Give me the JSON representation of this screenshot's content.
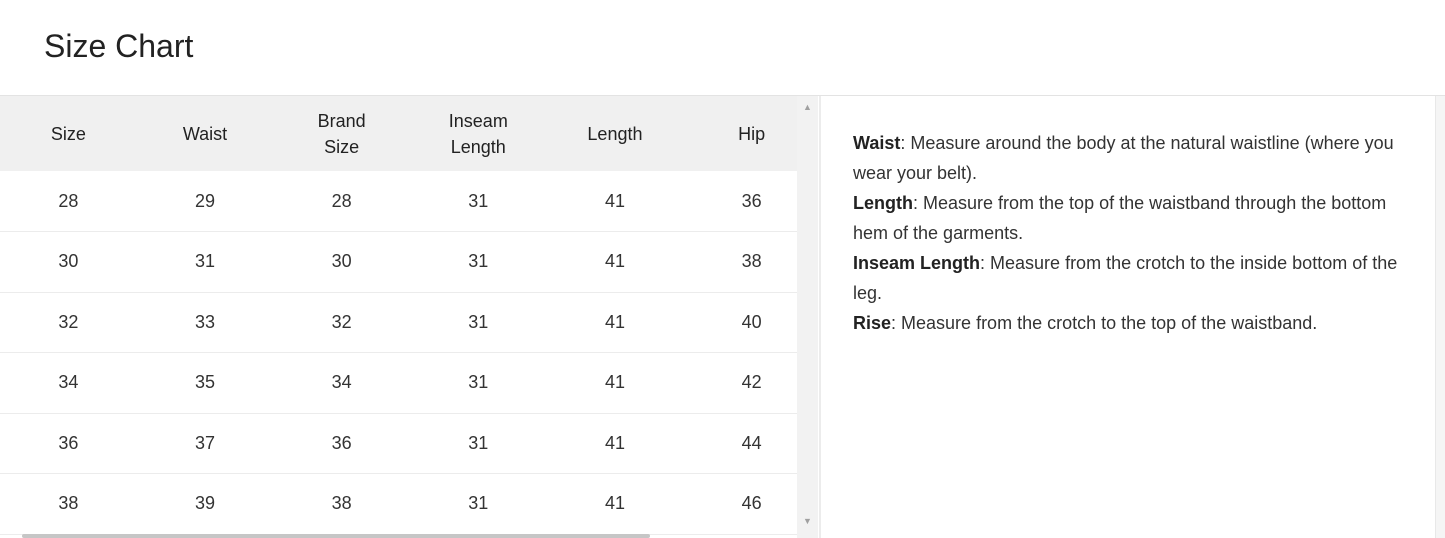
{
  "title": "Size Chart",
  "table": {
    "headers": [
      "Size",
      "Waist",
      "Brand Size",
      "Inseam Length",
      "Length",
      "Hip"
    ],
    "rows": [
      [
        "28",
        "29",
        "28",
        "31",
        "41",
        "36"
      ],
      [
        "30",
        "31",
        "30",
        "31",
        "41",
        "38"
      ],
      [
        "32",
        "33",
        "32",
        "31",
        "41",
        "40"
      ],
      [
        "34",
        "35",
        "34",
        "31",
        "41",
        "42"
      ],
      [
        "36",
        "37",
        "36",
        "31",
        "41",
        "44"
      ],
      [
        "38",
        "39",
        "38",
        "31",
        "41",
        "46"
      ]
    ]
  },
  "notes": [
    {
      "term": "Waist",
      "text": ": Measure around the body at the natural waistline (where you wear your belt)."
    },
    {
      "term": "Length",
      "text": ": Measure from the top of the waistband through the bottom hem of the garments."
    },
    {
      "term": "Inseam Length",
      "text": ": Measure from the crotch to the inside bottom of the leg."
    },
    {
      "term": "Rise",
      "text": ": Measure from the crotch to the top of the waistband."
    }
  ],
  "icons": {
    "scroll_up": "triangle-up",
    "scroll_down": "triangle-down"
  }
}
